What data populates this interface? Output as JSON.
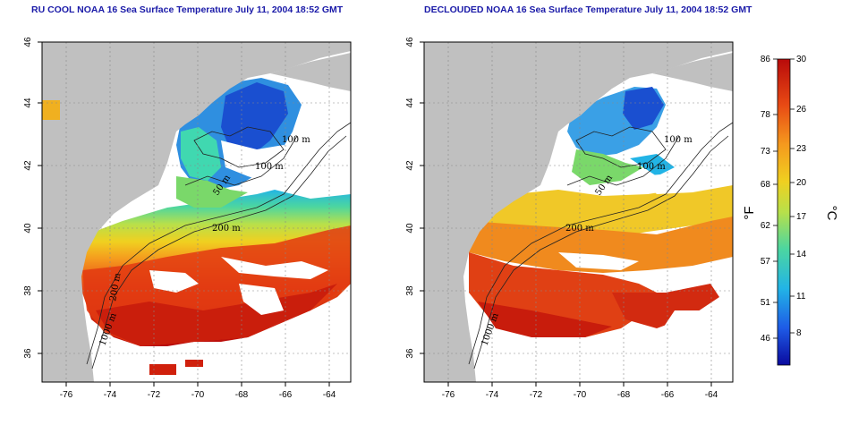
{
  "panels": [
    {
      "title": "RU COOL NOAA 16 Sea Surface Temperature July 11, 2004 18:52 GMT"
    },
    {
      "title": "DECLOUDED NOAA 16 Sea Surface Temperature July 11, 2004 18:52 GMT"
    }
  ],
  "axes": {
    "lon_ticks": [
      "-76",
      "-74",
      "-72",
      "-70",
      "-68",
      "-66",
      "-64"
    ],
    "lat_ticks": [
      "46",
      "44",
      "42",
      "40",
      "38",
      "36"
    ]
  },
  "contours": [
    "100 m",
    "100 m",
    "50 m",
    "200 m",
    "200 m",
    "1000 m"
  ],
  "colorbar": {
    "fahrenheit_unit": "°F",
    "celsius_unit": "°C",
    "fahrenheit_ticks": [
      "86",
      "78",
      "73",
      "68",
      "62",
      "57",
      "51",
      "46"
    ],
    "celsius_ticks": [
      "30",
      "26",
      "23",
      "20",
      "17",
      "14",
      "11",
      "8"
    ],
    "colors": [
      "#0a0a9e",
      "#1e5ae6",
      "#22b4e6",
      "#4cd6a0",
      "#b8e04a",
      "#f0d020",
      "#f59a1e",
      "#e84a14",
      "#b80a0a"
    ]
  },
  "colors": {
    "land": "#c0c0c0",
    "cloud": "#ffffff",
    "title": "#1a1aa8"
  }
}
